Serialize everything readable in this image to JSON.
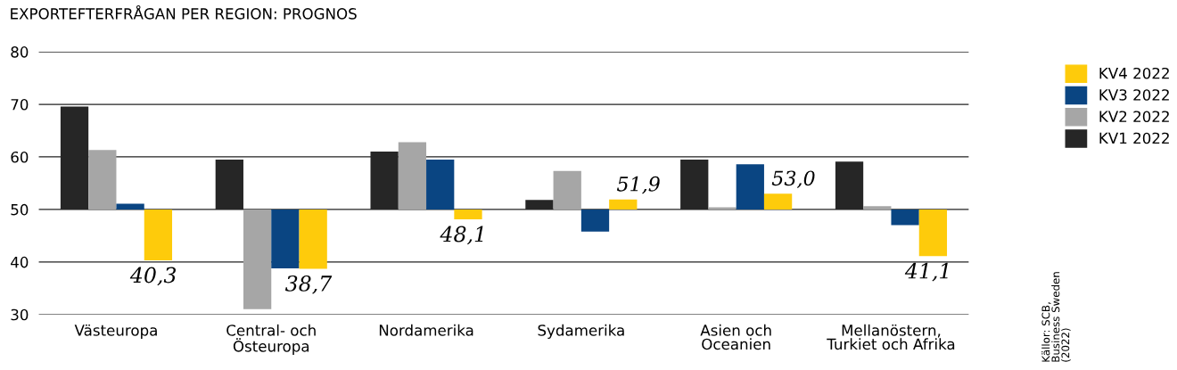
{
  "chart_data": {
    "type": "bar",
    "title": "EXPORTEFTERFRÅGAN PER REGION: PROGNOS",
    "categories": [
      "Västeuropa",
      "Central- och\nÖsteuropa",
      "Nordamerika",
      "Sydamerika",
      "Asien och\nOceanien",
      "Mellanöstern,\nTurkiet och Afrika"
    ],
    "series": [
      {
        "name": "KV1 2022",
        "color": "#262626",
        "base": [
          50,
          50,
          50,
          50,
          50,
          50
        ],
        "values": [
          19.6,
          9.5,
          11.0,
          1.8,
          9.5,
          9.1
        ]
      },
      {
        "name": "KV2 2022",
        "color": "#a6a6a6",
        "base": [
          50,
          50,
          50,
          50,
          50,
          50
        ],
        "values": [
          11.3,
          -19.0,
          12.8,
          7.3,
          0.4,
          0.6
        ]
      },
      {
        "name": "KV3 2022",
        "color": "#0a4582",
        "base": [
          50,
          50,
          50,
          50,
          50,
          50
        ],
        "values": [
          1.1,
          -11.2,
          9.5,
          -4.2,
          8.6,
          -3.0
        ]
      },
      {
        "name": "KV4 2022",
        "color": "#fecb0b",
        "base": [
          50,
          50,
          50,
          50,
          50,
          50
        ],
        "values": [
          -9.7,
          -11.3,
          -1.9,
          1.9,
          3.0,
          -8.9
        ],
        "value_labels": [
          "40,3",
          "38,7",
          "48,1",
          "51,9",
          "53,0",
          "41,1"
        ]
      }
    ],
    "ylim": [
      30,
      80
    ],
    "yticks": [
      30,
      40,
      50,
      60,
      70,
      80
    ],
    "grid": "y",
    "legend": "right",
    "annotations": [
      "Källor: SCB,\nBusiness Sweden\n(2022)"
    ]
  }
}
